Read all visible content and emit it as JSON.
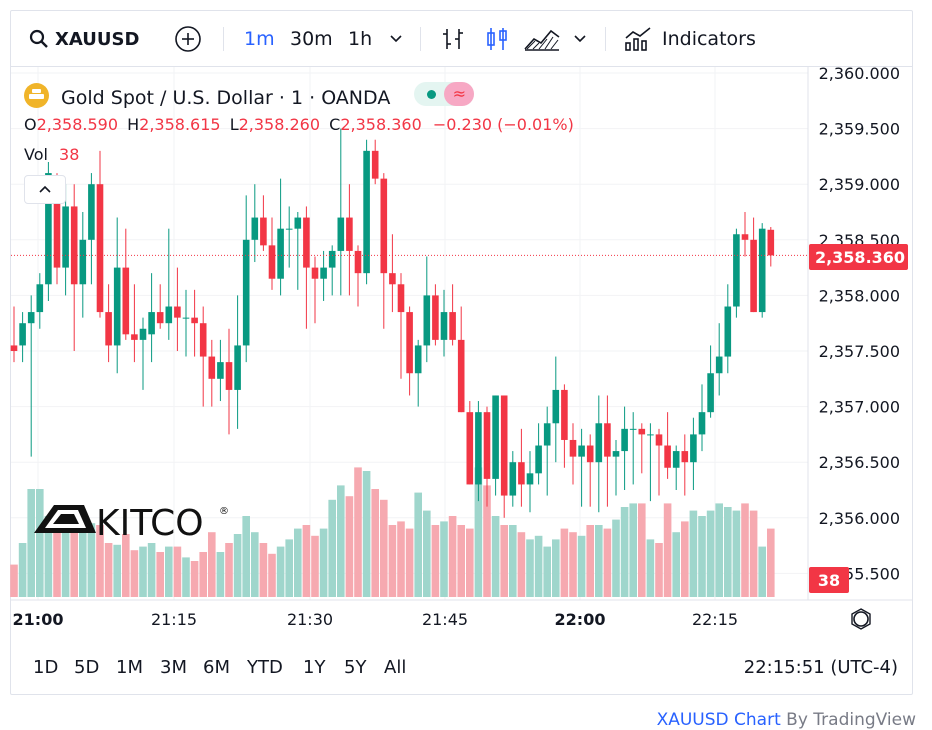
{
  "toolbar": {
    "symbol": "XAUUSD",
    "intervals": [
      "1m",
      "30m",
      "1h"
    ],
    "active_interval": "1m",
    "indicators_label": "Indicators"
  },
  "legend": {
    "title": "Gold Spot / U.S. Dollar",
    "interval": "1",
    "source": "OANDA",
    "o_label": "O",
    "o_value": "2,358.590",
    "h_label": "H",
    "h_value": "2,358.615",
    "l_label": "L",
    "l_value": "2,358.260",
    "c_label": "C",
    "c_value": "2,358.360",
    "change": "−0.230 (−0.01%)",
    "vol_label": "Vol",
    "vol_value": "38"
  },
  "logo_text": "KITCO",
  "price_axis": {
    "labels": [
      "2,360.000",
      "2,359.500",
      "2,359.000",
      "2,358.500",
      "2,358.000",
      "2,357.500",
      "2,357.000",
      "2,356.500",
      "2,356.000",
      "2,355.500"
    ],
    "last_price": "2,358.360",
    "last_volume": "38"
  },
  "time_axis": {
    "labels": [
      "21:00",
      "21:15",
      "21:30",
      "21:45",
      "22:00",
      "22:15"
    ]
  },
  "ranges": [
    "1D",
    "5D",
    "1M",
    "3M",
    "6M",
    "YTD",
    "1Y",
    "5Y",
    "All"
  ],
  "clock": "22:15:51 (UTC-4)",
  "footer": {
    "symbol_link": "XAUUSD Chart",
    "by": "By TradingView"
  },
  "colors": {
    "up": "#089981",
    "down": "#f23645",
    "vol_up": "#9fd6cc",
    "vol_down": "#f6a9b0",
    "accent": "#2962ff"
  },
  "chart_data": {
    "type": "candlestick",
    "symbol": "XAUUSD",
    "ylim": [
      2355.4,
      2360.1
    ],
    "candles": [
      [
        2357.55,
        2357.9,
        2357.4,
        2357.5,
        18
      ],
      [
        2357.55,
        2357.85,
        2357.4,
        2357.75,
        30
      ],
      [
        2357.75,
        2358.0,
        2356.55,
        2357.85,
        60
      ],
      [
        2357.85,
        2358.2,
        2357.7,
        2358.1,
        60
      ],
      [
        2358.1,
        2359.2,
        2357.95,
        2359.1,
        45
      ],
      [
        2359.05,
        2359.1,
        2358.1,
        2358.25,
        48
      ],
      [
        2358.25,
        2359.0,
        2358.0,
        2358.8,
        42
      ],
      [
        2358.8,
        2359.0,
        2357.5,
        2358.1,
        42
      ],
      [
        2358.1,
        2358.75,
        2357.8,
        2358.5,
        40
      ],
      [
        2358.5,
        2359.1,
        2358.1,
        2359.0,
        41
      ],
      [
        2359.0,
        2359.3,
        2357.8,
        2357.85,
        40
      ],
      [
        2357.85,
        2358.1,
        2357.4,
        2357.55,
        30
      ],
      [
        2357.55,
        2358.7,
        2357.3,
        2358.25,
        29
      ],
      [
        2358.25,
        2358.6,
        2357.6,
        2357.65,
        35
      ],
      [
        2357.65,
        2358.1,
        2357.4,
        2357.6,
        26
      ],
      [
        2357.6,
        2357.8,
        2357.15,
        2357.7,
        28
      ],
      [
        2357.65,
        2358.2,
        2357.4,
        2357.85,
        30
      ],
      [
        2357.85,
        2358.1,
        2357.7,
        2357.75,
        25
      ],
      [
        2357.75,
        2358.6,
        2357.6,
        2357.9,
        28
      ],
      [
        2357.9,
        2358.25,
        2357.5,
        2357.8,
        28
      ],
      [
        2357.8,
        2358.05,
        2357.45,
        2357.8,
        22
      ],
      [
        2357.8,
        2358.05,
        2357.45,
        2357.75,
        20
      ],
      [
        2357.75,
        2357.9,
        2357.0,
        2357.45,
        25
      ],
      [
        2357.45,
        2357.6,
        2357.0,
        2357.25,
        36
      ],
      [
        2357.25,
        2357.6,
        2357.05,
        2357.4,
        25
      ],
      [
        2357.4,
        2357.7,
        2356.75,
        2357.15,
        30
      ],
      [
        2357.15,
        2358.0,
        2356.8,
        2357.55,
        35
      ],
      [
        2357.55,
        2358.9,
        2357.4,
        2358.5,
        45
      ],
      [
        2358.5,
        2359.0,
        2358.3,
        2358.7,
        36
      ],
      [
        2358.7,
        2358.9,
        2358.4,
        2358.45,
        30
      ],
      [
        2358.45,
        2358.7,
        2358.05,
        2358.15,
        24
      ],
      [
        2358.15,
        2359.05,
        2358.0,
        2358.6,
        28
      ],
      [
        2358.6,
        2358.8,
        2358.25,
        2358.6,
        32
      ],
      [
        2358.6,
        2358.75,
        2358.05,
        2358.7,
        38
      ],
      [
        2358.7,
        2358.8,
        2357.7,
        2358.25,
        40
      ],
      [
        2358.25,
        2358.35,
        2357.75,
        2358.15,
        34
      ],
      [
        2358.15,
        2358.4,
        2357.95,
        2358.25,
        38
      ],
      [
        2358.25,
        2358.45,
        2358.0,
        2358.4,
        54
      ],
      [
        2358.4,
        2359.5,
        2358.0,
        2358.7,
        62
      ],
      [
        2358.7,
        2359.0,
        2358.0,
        2358.4,
        56
      ],
      [
        2358.4,
        2358.45,
        2357.9,
        2358.2,
        72
      ],
      [
        2358.2,
        2359.4,
        2358.1,
        2359.3,
        70
      ],
      [
        2359.3,
        2359.4,
        2359.0,
        2359.05,
        60
      ],
      [
        2359.05,
        2359.1,
        2357.7,
        2358.2,
        54
      ],
      [
        2358.2,
        2358.55,
        2357.85,
        2358.1,
        40
      ],
      [
        2358.1,
        2358.2,
        2357.25,
        2357.85,
        42
      ],
      [
        2357.85,
        2357.9,
        2357.1,
        2357.3,
        38
      ],
      [
        2357.3,
        2357.6,
        2357.0,
        2357.55,
        58
      ],
      [
        2357.55,
        2358.35,
        2357.4,
        2358.0,
        48
      ],
      [
        2358.0,
        2358.1,
        2357.55,
        2357.6,
        40
      ],
      [
        2357.6,
        2358.05,
        2357.45,
        2357.85,
        42
      ],
      [
        2357.85,
        2358.1,
        2357.55,
        2357.6,
        45
      ],
      [
        2357.6,
        2357.9,
        2356.95,
        2356.95,
        40
      ],
      [
        2356.95,
        2357.05,
        2356.3,
        2356.3,
        38
      ],
      [
        2356.3,
        2357.05,
        2356.15,
        2356.95,
        72
      ],
      [
        2356.95,
        2357.0,
        2356.1,
        2356.35,
        62
      ],
      [
        2356.35,
        2357.1,
        2356.2,
        2357.1,
        45
      ],
      [
        2357.1,
        2357.1,
        2356.0,
        2356.2,
        40
      ],
      [
        2356.2,
        2356.6,
        2356.1,
        2356.5,
        40
      ],
      [
        2356.5,
        2356.8,
        2356.1,
        2356.3,
        36
      ],
      [
        2356.3,
        2356.6,
        2356.05,
        2356.4,
        32
      ],
      [
        2356.4,
        2356.85,
        2356.3,
        2356.65,
        34
      ],
      [
        2356.65,
        2357.0,
        2356.2,
        2356.85,
        28
      ],
      [
        2356.85,
        2357.45,
        2356.5,
        2357.15,
        32
      ],
      [
        2357.15,
        2357.2,
        2356.45,
        2356.7,
        38
      ],
      [
        2356.7,
        2356.85,
        2356.3,
        2356.55,
        36
      ],
      [
        2356.55,
        2356.8,
        2356.1,
        2356.65,
        34
      ],
      [
        2356.65,
        2356.75,
        2356.1,
        2356.5,
        40
      ],
      [
        2356.5,
        2357.1,
        2356.05,
        2356.85,
        40
      ],
      [
        2356.85,
        2357.1,
        2356.1,
        2356.55,
        38
      ],
      [
        2356.55,
        2356.7,
        2356.2,
        2356.6,
        43
      ],
      [
        2356.6,
        2357.0,
        2356.25,
        2356.8,
        50
      ],
      [
        2356.8,
        2356.95,
        2356.3,
        2356.8,
        52
      ],
      [
        2356.8,
        2356.85,
        2356.4,
        2356.75,
        52
      ],
      [
        2356.75,
        2356.85,
        2356.15,
        2356.75,
        32
      ],
      [
        2356.75,
        2356.8,
        2356.2,
        2356.65,
        30
      ],
      [
        2356.65,
        2356.95,
        2356.35,
        2356.45,
        52
      ],
      [
        2356.45,
        2356.65,
        2356.25,
        2356.6,
        36
      ],
      [
        2356.6,
        2356.75,
        2356.2,
        2356.5,
        42
      ],
      [
        2356.5,
        2356.9,
        2356.25,
        2356.75,
        48
      ],
      [
        2356.75,
        2357.2,
        2356.6,
        2356.95,
        45
      ],
      [
        2356.95,
        2357.55,
        2356.9,
        2357.3,
        48
      ],
      [
        2357.3,
        2357.75,
        2357.1,
        2357.45,
        52
      ],
      [
        2357.45,
        2358.1,
        2357.3,
        2357.9,
        50
      ],
      [
        2357.9,
        2358.6,
        2357.8,
        2358.55,
        48
      ],
      [
        2358.55,
        2358.75,
        2358.35,
        2358.5,
        52
      ],
      [
        2358.5,
        2358.7,
        2357.85,
        2357.85,
        48
      ],
      [
        2357.85,
        2358.65,
        2357.8,
        2358.6,
        28
      ],
      [
        2358.59,
        2358.615,
        2358.26,
        2358.36,
        38
      ]
    ]
  }
}
